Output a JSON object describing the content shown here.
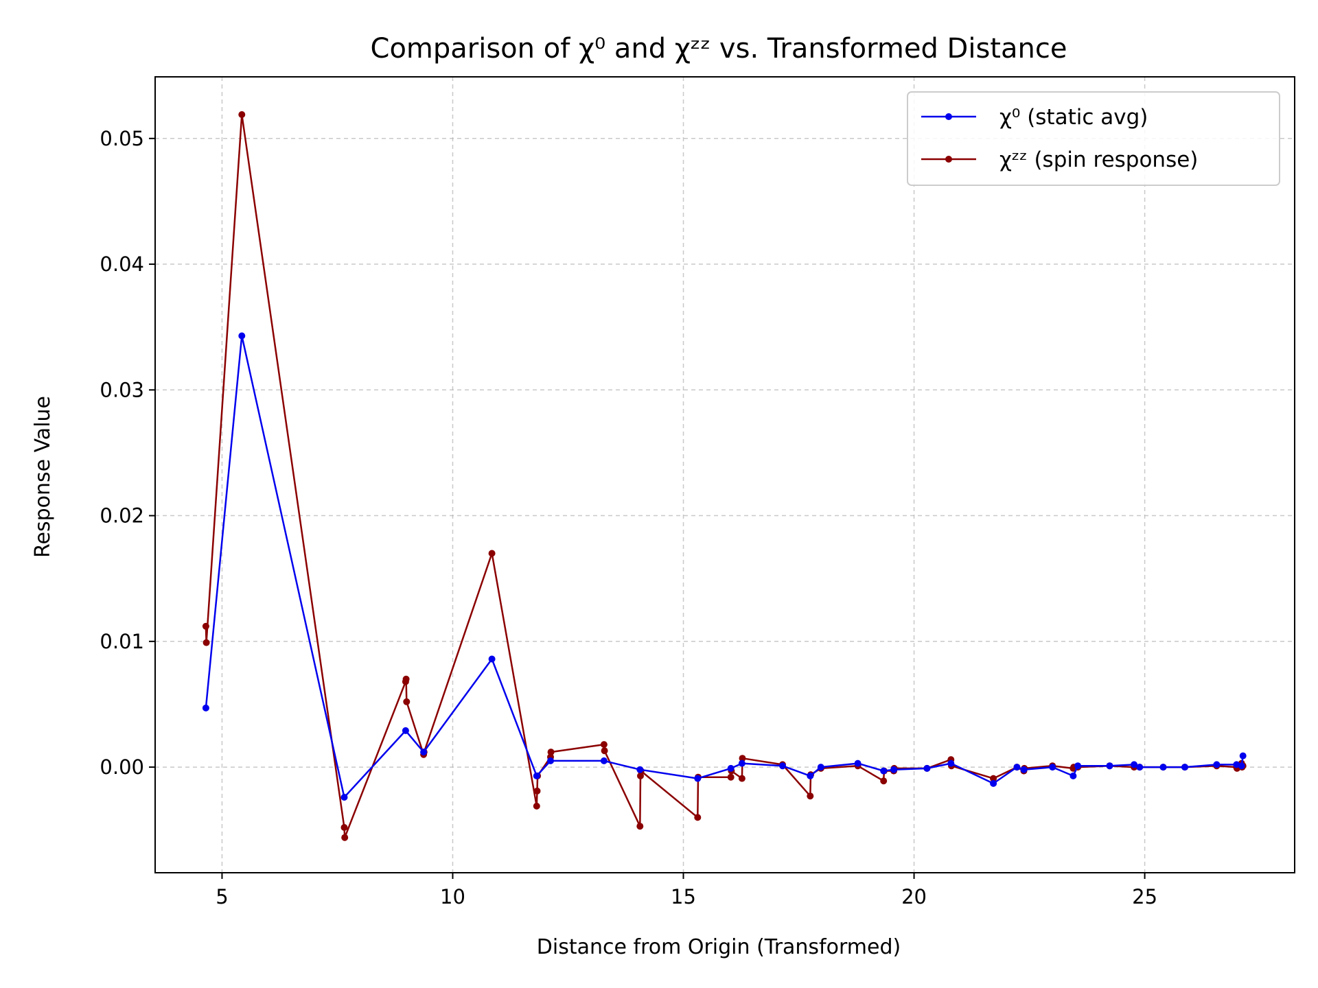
{
  "chart_data": {
    "type": "line",
    "title": "Comparison of χ⁰ and χᶻᶻ vs. Transformed Distance",
    "xlabel": "Distance from Origin (Transformed)",
    "ylabel": "Response Value",
    "xlim": [
      3.55,
      28.25
    ],
    "ylim": [
      -0.0084,
      0.0549
    ],
    "xticks": [
      5,
      10,
      15,
      20,
      25
    ],
    "yticks": [
      0.0,
      0.01,
      0.02,
      0.03,
      0.04,
      0.05
    ],
    "xtick_labels": [
      "5",
      "10",
      "15",
      "20",
      "25"
    ],
    "ytick_labels": [
      "0.00",
      "0.01",
      "0.02",
      "0.03",
      "0.04",
      "0.05"
    ],
    "grid": true,
    "legend_position": "top-right",
    "colors": {
      "chi0": "#0000ee",
      "chizz": "#8b0000"
    },
    "series": [
      {
        "name": "χ⁰ (static avg)",
        "color": "#0000ee",
        "x": [
          4.65,
          5.43,
          7.65,
          8.98,
          9.37,
          10.85,
          11.82,
          12.12,
          13.28,
          14.06,
          15.31,
          16.03,
          16.27,
          17.15,
          17.75,
          17.98,
          18.78,
          19.34,
          19.56,
          20.28,
          20.8,
          21.72,
          22.23,
          22.38,
          23.0,
          23.45,
          23.55,
          24.24,
          24.77,
          24.89,
          25.4,
          25.87,
          26.56,
          26.99,
          27.1,
          27.13
        ],
        "y": [
          0.0047,
          0.0343,
          -0.0024,
          0.0029,
          0.0012,
          0.0086,
          -0.0007,
          0.0005,
          0.0005,
          -0.0002,
          -0.0009,
          -0.0001,
          0.0003,
          0.0001,
          -0.0007,
          0.0,
          0.0003,
          -0.0003,
          -0.0002,
          -0.0001,
          0.0003,
          -0.0013,
          0.0,
          -0.0002,
          0.0,
          -0.0007,
          0.0001,
          0.0001,
          0.0002,
          0.0,
          0.0,
          0.0,
          0.0002,
          0.0002,
          0.0001,
          0.0009
        ]
      },
      {
        "name": "χᶻᶻ (spin response)",
        "color": "#8b0000",
        "x": [
          4.65,
          4.66,
          5.43,
          7.65,
          7.66,
          8.98,
          8.99,
          9.0,
          9.37,
          9.38,
          10.85,
          11.82,
          11.83,
          11.84,
          12.12,
          12.13,
          13.28,
          13.29,
          14.06,
          14.07,
          14.08,
          15.31,
          15.32,
          16.03,
          16.04,
          16.27,
          16.28,
          17.15,
          17.75,
          17.76,
          17.98,
          18.78,
          19.34,
          19.35,
          19.56,
          19.57,
          20.28,
          20.8,
          20.81,
          21.72,
          22.23,
          22.38,
          22.39,
          23.0,
          23.45,
          23.46,
          23.55,
          24.24,
          24.77,
          24.89,
          25.4,
          25.87,
          26.56,
          26.99,
          27.0,
          27.1,
          27.11,
          27.13
        ],
        "y": [
          0.0112,
          0.0099,
          0.0519,
          -0.0048,
          -0.0056,
          0.0068,
          0.007,
          0.0052,
          0.001,
          0.0012,
          0.017,
          -0.0031,
          -0.0019,
          -0.0007,
          0.0008,
          0.0012,
          0.0018,
          0.0013,
          -0.0047,
          -0.0007,
          -0.0003,
          -0.004,
          -0.0008,
          -0.0008,
          -0.0003,
          -0.0009,
          0.0007,
          0.0002,
          -0.0023,
          -0.0006,
          -0.0001,
          0.0001,
          -0.0011,
          -0.0003,
          -0.0003,
          -0.0001,
          -0.0001,
          0.0006,
          0.0001,
          -0.0009,
          0.0,
          -0.0003,
          -0.0001,
          0.0001,
          -0.0001,
          0.0,
          0.0,
          0.0001,
          0.0,
          0.0,
          0.0,
          0.0,
          0.0001,
          0.0,
          -0.0001,
          0.0003,
          0.0,
          0.0001
        ]
      }
    ]
  }
}
